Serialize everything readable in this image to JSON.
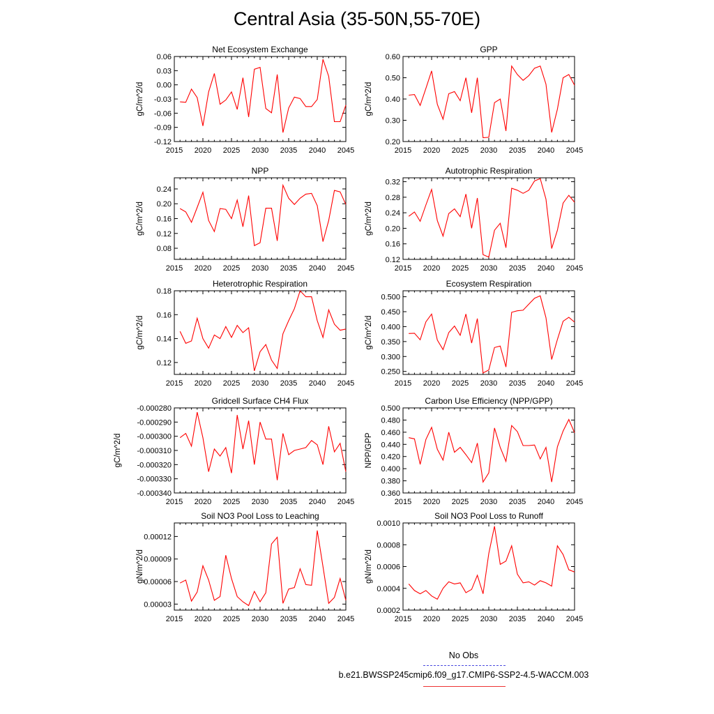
{
  "page": {
    "title": "Central Asia (35-50N,55-70E)"
  },
  "legend": {
    "obs_label": "No Obs",
    "model_label": "b.e21.BWSSP245cmip6.f09_g17.CMIP6-SSP2-4.5-WACCM.003",
    "obs_color": "#4a4adf",
    "model_color": "#ff0000"
  },
  "chart_data": [
    {
      "type": "line",
      "title": "Net Ecosystem Exchange",
      "ylabel": "gC/m^2/d",
      "xlim": [
        2015,
        2045
      ],
      "ylim": [
        -0.12,
        0.06
      ],
      "xticks": [
        "2015",
        "2020",
        "2025",
        "2030",
        "2035",
        "2040",
        "2045"
      ],
      "yticks": [
        "-0.12",
        "-0.09",
        "-0.06",
        "-0.03",
        "0.00",
        "0.03",
        "0.06"
      ],
      "x": [
        2016,
        2017,
        2018,
        2019,
        2020,
        2021,
        2022,
        2023,
        2024,
        2025,
        2026,
        2027,
        2028,
        2029,
        2030,
        2031,
        2032,
        2033,
        2034,
        2035,
        2036,
        2037,
        2038,
        2039,
        2040,
        2041,
        2042,
        2043,
        2044,
        2045
      ],
      "values": [
        -0.036,
        -0.037,
        -0.009,
        -0.027,
        -0.087,
        -0.015,
        0.024,
        -0.041,
        -0.032,
        -0.015,
        -0.052,
        0.015,
        -0.068,
        0.033,
        0.037,
        -0.05,
        -0.059,
        0.022,
        -0.101,
        -0.049,
        -0.026,
        -0.029,
        -0.046,
        -0.046,
        -0.031,
        0.054,
        0.018,
        -0.078,
        -0.078,
        -0.043
      ],
      "color": "#ff0000"
    },
    {
      "type": "line",
      "title": "GPP",
      "ylabel": "gC/m^2/d",
      "xlim": [
        2015,
        2045
      ],
      "ylim": [
        0.2,
        0.6
      ],
      "xticks": [
        "2015",
        "2020",
        "2025",
        "2030",
        "2035",
        "2040",
        "2045"
      ],
      "yticks": [
        "0.20",
        "0.30",
        "0.40",
        "0.50",
        "0.60"
      ],
      "x": [
        2016,
        2017,
        2018,
        2019,
        2020,
        2021,
        2022,
        2023,
        2024,
        2025,
        2026,
        2027,
        2028,
        2029,
        2030,
        2031,
        2032,
        2033,
        2034,
        2035,
        2036,
        2037,
        2038,
        2039,
        2040,
        2041,
        2042,
        2043,
        2044,
        2045
      ],
      "values": [
        0.418,
        0.421,
        0.37,
        0.45,
        0.532,
        0.375,
        0.305,
        0.425,
        0.435,
        0.392,
        0.5,
        0.335,
        0.5,
        0.218,
        0.22,
        0.383,
        0.4,
        0.25,
        0.555,
        0.515,
        0.488,
        0.51,
        0.545,
        0.555,
        0.47,
        0.243,
        0.352,
        0.5,
        0.515,
        0.465
      ],
      "color": "#ff0000"
    },
    {
      "type": "line",
      "title": "NPP",
      "ylabel": "gC/m^2/d",
      "xlim": [
        2015,
        2045
      ],
      "ylim": [
        0.05,
        0.27
      ],
      "xticks": [
        "2015",
        "2020",
        "2025",
        "2030",
        "2035",
        "2040",
        "2045"
      ],
      "yticks": [
        "0.08",
        "0.12",
        "0.16",
        "0.20",
        "0.24"
      ],
      "x": [
        2016,
        2017,
        2018,
        2019,
        2020,
        2021,
        2022,
        2023,
        2024,
        2025,
        2026,
        2027,
        2028,
        2029,
        2030,
        2031,
        2032,
        2033,
        2034,
        2035,
        2036,
        2037,
        2038,
        2039,
        2040,
        2041,
        2042,
        2043,
        2044,
        2045
      ],
      "values": [
        0.187,
        0.178,
        0.15,
        0.19,
        0.231,
        0.155,
        0.125,
        0.187,
        0.185,
        0.16,
        0.21,
        0.138,
        0.222,
        0.087,
        0.095,
        0.188,
        0.188,
        0.1,
        0.25,
        0.215,
        0.198,
        0.215,
        0.226,
        0.228,
        0.195,
        0.098,
        0.155,
        0.236,
        0.232,
        0.198
      ],
      "color": "#ff0000"
    },
    {
      "type": "line",
      "title": "Autotrophic Respiration",
      "ylabel": "gC/m^2/d",
      "xlim": [
        2015,
        2045
      ],
      "ylim": [
        0.12,
        0.33
      ],
      "xticks": [
        "2015",
        "2020",
        "2025",
        "2030",
        "2035",
        "2040",
        "2045"
      ],
      "yticks": [
        "0.12",
        "0.16",
        "0.20",
        "0.24",
        "0.28",
        "0.32"
      ],
      "x": [
        2016,
        2017,
        2018,
        2019,
        2020,
        2021,
        2022,
        2023,
        2024,
        2025,
        2026,
        2027,
        2028,
        2029,
        2030,
        2031,
        2032,
        2033,
        2034,
        2035,
        2036,
        2037,
        2038,
        2039,
        2040,
        2041,
        2042,
        2043,
        2044,
        2045
      ],
      "values": [
        0.231,
        0.242,
        0.218,
        0.26,
        0.3,
        0.22,
        0.18,
        0.238,
        0.25,
        0.23,
        0.288,
        0.2,
        0.278,
        0.132,
        0.126,
        0.195,
        0.213,
        0.15,
        0.303,
        0.298,
        0.29,
        0.298,
        0.322,
        0.328,
        0.275,
        0.148,
        0.195,
        0.265,
        0.285,
        0.267
      ],
      "color": "#ff0000"
    },
    {
      "type": "line",
      "title": "Heterotrophic Respiration",
      "ylabel": "gC/m^2/d",
      "xlim": [
        2015,
        2045
      ],
      "ylim": [
        0.11,
        0.18
      ],
      "xticks": [
        "2015",
        "2020",
        "2025",
        "2030",
        "2035",
        "2040",
        "2045"
      ],
      "yticks": [
        "0.12",
        "0.14",
        "0.16",
        "0.18"
      ],
      "x": [
        2016,
        2017,
        2018,
        2019,
        2020,
        2021,
        2022,
        2023,
        2024,
        2025,
        2026,
        2027,
        2028,
        2029,
        2030,
        2031,
        2032,
        2033,
        2034,
        2035,
        2036,
        2037,
        2038,
        2039,
        2040,
        2041,
        2042,
        2043,
        2044,
        2045
      ],
      "values": [
        0.146,
        0.136,
        0.138,
        0.157,
        0.14,
        0.132,
        0.143,
        0.14,
        0.15,
        0.141,
        0.151,
        0.145,
        0.149,
        0.113,
        0.129,
        0.135,
        0.122,
        0.115,
        0.144,
        0.155,
        0.165,
        0.18,
        0.175,
        0.175,
        0.155,
        0.141,
        0.164,
        0.152,
        0.147,
        0.148
      ],
      "color": "#ff0000"
    },
    {
      "type": "line",
      "title": "Ecosystem Respiration",
      "ylabel": "gC/m^2/d",
      "xlim": [
        2015,
        2045
      ],
      "ylim": [
        0.24,
        0.52
      ],
      "xticks": [
        "2015",
        "2020",
        "2025",
        "2030",
        "2035",
        "2040",
        "2045"
      ],
      "yticks": [
        "0.250",
        "0.300",
        "0.350",
        "0.400",
        "0.450",
        "0.500"
      ],
      "x": [
        2016,
        2017,
        2018,
        2019,
        2020,
        2021,
        2022,
        2023,
        2024,
        2025,
        2026,
        2027,
        2028,
        2029,
        2030,
        2031,
        2032,
        2033,
        2034,
        2035,
        2036,
        2037,
        2038,
        2039,
        2040,
        2041,
        2042,
        2043,
        2044,
        2045
      ],
      "values": [
        0.377,
        0.378,
        0.356,
        0.416,
        0.442,
        0.355,
        0.323,
        0.38,
        0.402,
        0.371,
        0.442,
        0.345,
        0.427,
        0.245,
        0.255,
        0.33,
        0.335,
        0.265,
        0.448,
        0.453,
        0.455,
        0.475,
        0.495,
        0.503,
        0.43,
        0.29,
        0.357,
        0.418,
        0.431,
        0.415
      ],
      "color": "#ff0000"
    },
    {
      "type": "line",
      "title": "Gridcell Surface CH4 Flux",
      "ylabel": "gC/m^2/d",
      "xlim": [
        2015,
        2045
      ],
      "ylim": [
        -0.00034,
        -0.00028
      ],
      "xticks": [
        "2015",
        "2020",
        "2025",
        "2030",
        "2035",
        "2040",
        "2045"
      ],
      "yticks": [
        "-0.000340",
        "-0.000330",
        "-0.000320",
        "-0.000310",
        "-0.000300",
        "-0.000290",
        "-0.000280"
      ],
      "x": [
        2016,
        2017,
        2018,
        2019,
        2020,
        2021,
        2022,
        2023,
        2024,
        2025,
        2026,
        2027,
        2028,
        2029,
        2030,
        2031,
        2032,
        2033,
        2034,
        2035,
        2036,
        2037,
        2038,
        2039,
        2040,
        2041,
        2042,
        2043,
        2044,
        2045
      ],
      "values": [
        -0.000301,
        -0.000298,
        -0.000307,
        -0.000283,
        -0.000301,
        -0.000325,
        -0.000309,
        -0.000314,
        -0.000308,
        -0.000326,
        -0.000285,
        -0.000309,
        -0.000289,
        -0.00032,
        -0.00029,
        -0.000302,
        -0.000302,
        -0.000331,
        -0.000298,
        -0.000313,
        -0.00031,
        -0.000309,
        -0.000308,
        -0.000303,
        -0.000306,
        -0.00032,
        -0.000293,
        -0.000311,
        -0.000305,
        -0.000325
      ],
      "color": "#ff0000"
    },
    {
      "type": "line",
      "title": "Carbon Use Efficiency (NPP/GPP)",
      "ylabel": "NPP/GPP",
      "xlim": [
        2015,
        2045
      ],
      "ylim": [
        0.36,
        0.5
      ],
      "xticks": [
        "2015",
        "2020",
        "2025",
        "2030",
        "2035",
        "2040",
        "2045"
      ],
      "yticks": [
        "0.360",
        "0.380",
        "0.400",
        "0.420",
        "0.440",
        "0.460",
        "0.480",
        "0.500"
      ],
      "x": [
        2016,
        2017,
        2018,
        2019,
        2020,
        2021,
        2022,
        2023,
        2024,
        2025,
        2026,
        2027,
        2028,
        2029,
        2030,
        2031,
        2032,
        2033,
        2034,
        2035,
        2036,
        2037,
        2038,
        2039,
        2040,
        2041,
        2042,
        2043,
        2044,
        2045
      ],
      "values": [
        0.451,
        0.449,
        0.407,
        0.448,
        0.468,
        0.432,
        0.414,
        0.46,
        0.427,
        0.435,
        0.423,
        0.41,
        0.442,
        0.378,
        0.393,
        0.467,
        0.435,
        0.412,
        0.471,
        0.461,
        0.438,
        0.438,
        0.439,
        0.416,
        0.435,
        0.378,
        0.436,
        0.462,
        0.481,
        0.459
      ],
      "color": "#ff0000"
    },
    {
      "type": "line",
      "title": "Soil NO3 Pool Loss to Leaching",
      "ylabel": "gN/m^2/d",
      "xlim": [
        2015,
        2045
      ],
      "ylim": [
        2.2e-05,
        0.000138
      ],
      "xticks": [
        "2015",
        "2020",
        "2025",
        "2030",
        "2035",
        "2040",
        "2045"
      ],
      "yticks": [
        "0.00003",
        "0.00006",
        "0.00009",
        "0.00012"
      ],
      "x": [
        2016,
        2017,
        2018,
        2019,
        2020,
        2021,
        2022,
        2023,
        2024,
        2025,
        2026,
        2027,
        2028,
        2029,
        2030,
        2031,
        2032,
        2033,
        2034,
        2035,
        2036,
        2037,
        2038,
        2039,
        2040,
        2041,
        2042,
        2043,
        2044,
        2045
      ],
      "values": [
        5.8e-05,
        6.2e-05,
        3.4e-05,
        4.6e-05,
        8.1e-05,
        6.2e-05,
        3.5e-05,
        4e-05,
        9.5e-05,
        6.4e-05,
        4e-05,
        3.3e-05,
        2.8e-05,
        4.7e-05,
        3.3e-05,
        4.5e-05,
        0.00011,
        0.000119,
        3.1e-05,
        5e-05,
        5.2e-05,
        7.7e-05,
        5.6e-05,
        5.5e-05,
        0.000128,
        8e-05,
        3.1e-05,
        3.9e-05,
        6.4e-05,
        3.5e-05
      ],
      "color": "#ff0000"
    },
    {
      "type": "line",
      "title": "Soil NO3 Pool Loss to Runoff",
      "ylabel": "gN/m^2/d",
      "xlim": [
        2015,
        2045
      ],
      "ylim": [
        0.0002,
        0.001
      ],
      "xticks": [
        "2015",
        "2020",
        "2025",
        "2030",
        "2035",
        "2040",
        "2045"
      ],
      "yticks": [
        "0.0002",
        "0.0004",
        "0.0006",
        "0.0008",
        "0.0010"
      ],
      "x": [
        2016,
        2017,
        2018,
        2019,
        2020,
        2021,
        2022,
        2023,
        2024,
        2025,
        2026,
        2027,
        2028,
        2029,
        2030,
        2031,
        2032,
        2033,
        2034,
        2035,
        2036,
        2037,
        2038,
        2039,
        2040,
        2041,
        2042,
        2043,
        2044,
        2045
      ],
      "values": [
        0.00044,
        0.00038,
        0.00035,
        0.00038,
        0.00033,
        0.0003,
        0.0004,
        0.00046,
        0.00044,
        0.00045,
        0.00036,
        0.00039,
        0.00052,
        0.00035,
        0.00072,
        0.00097,
        0.00062,
        0.00065,
        0.00079,
        0.00053,
        0.00045,
        0.00046,
        0.00043,
        0.00047,
        0.00045,
        0.00042,
        0.00079,
        0.00071,
        0.00057,
        0.00055
      ],
      "color": "#ff0000"
    }
  ]
}
